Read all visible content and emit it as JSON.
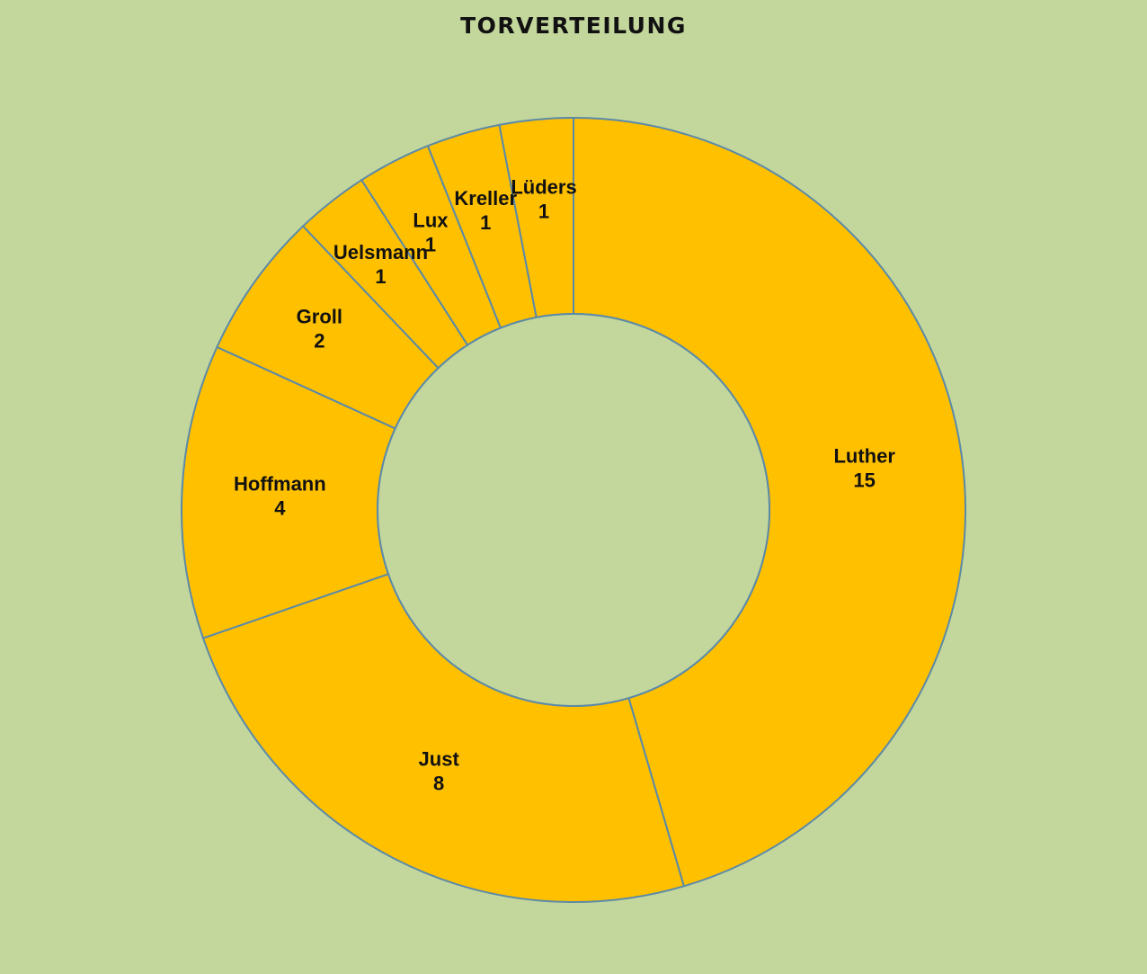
{
  "chart_data": {
    "type": "pie",
    "variant": "donut",
    "title": "TORVERTEILUNG",
    "categories": [
      "Luther",
      "Just",
      "Hoffmann",
      "Groll",
      "Uelsmann",
      "Lux",
      "Kreller",
      "Lüders"
    ],
    "values": [
      15,
      8,
      4,
      2,
      1,
      1,
      1,
      1
    ],
    "legend": "none",
    "data_labels": "category and value, inside slices",
    "colors": {
      "background": "#c3d69b",
      "slice_fill": "#ffc000",
      "slice_border": "#5b8aa8",
      "hole": "#c3d69b",
      "label_text": "#111111"
    }
  }
}
